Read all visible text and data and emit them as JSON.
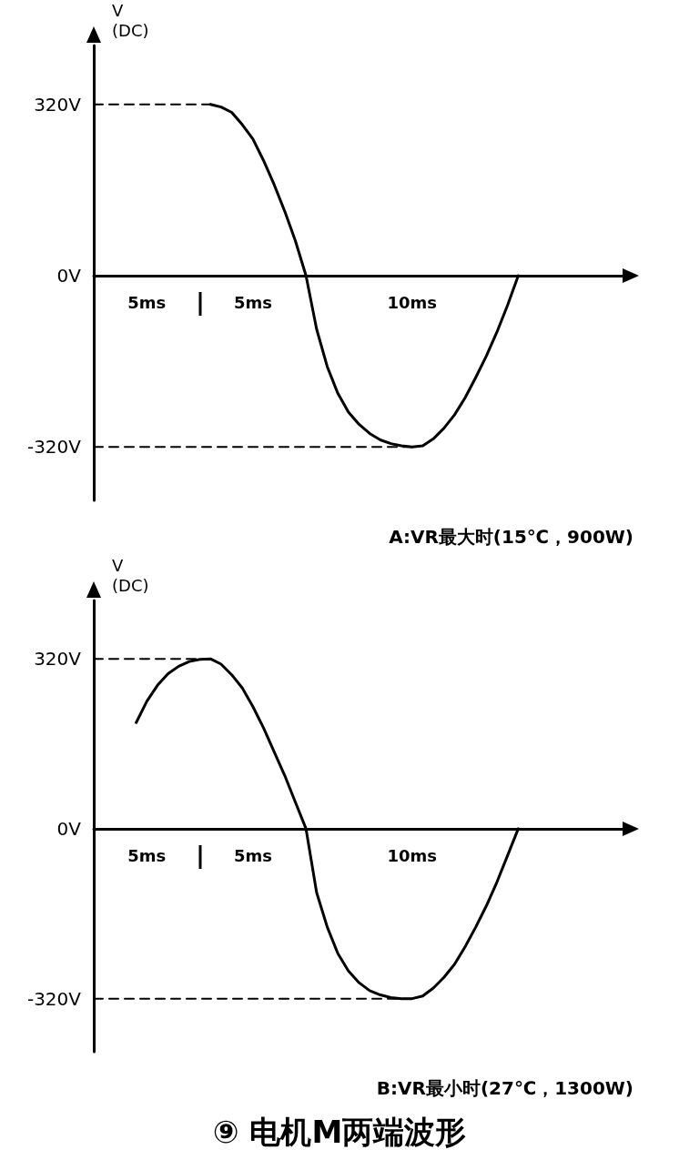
{
  "chart_data": [
    {
      "type": "line",
      "ylabel": "V\n(DC)",
      "categories": [
        null,
        null,
        null,
        null,
        null,
        null,
        null,
        null,
        null,
        null,
        null,
        null,
        null,
        null,
        null,
        null,
        null,
        null,
        null,
        null,
        null,
        null,
        null,
        null,
        null,
        null,
        null,
        null,
        null,
        null,
        null,
        null,
        null,
        null,
        null,
        null,
        null,
        null,
        null,
        null,
        null,
        null,
        null,
        null,
        null,
        null,
        null,
        null,
        null,
        null,
        null
      ],
      "ylim": [
        -420,
        430
      ],
      "yticks": [
        {
          "value": -320,
          "label": "-320V"
        },
        {
          "value": 0,
          "label": "0V"
        },
        {
          "value": 320,
          "label": "320V"
        }
      ],
      "grid": false,
      "marker": "none",
      "series": [
        {
          "color": "#000000",
          "line_style": "solid",
          "values": [
            null,
            null,
            null,
            null,
            null,
            null,
            null,
            null,
            null,
            null,
            null,
            320,
            315,
            305,
            282,
            255,
            215,
            170,
            120,
            65,
            0,
            -100,
            -170,
            -220,
            -255,
            -278,
            -295,
            -307,
            -314,
            -318,
            -320,
            -318,
            -305,
            -285,
            -260,
            -228,
            -190,
            -150,
            -105,
            -55,
            0,
            null,
            null,
            null,
            null,
            null,
            null,
            null,
            null,
            null,
            null
          ]
        },
        {
          "color": "#000000",
          "line_style": "dashed",
          "values": [
            320,
            320,
            320,
            320,
            320,
            320,
            320,
            320,
            320,
            320,
            320,
            320,
            null,
            null,
            null,
            null,
            null,
            null,
            null,
            null,
            null,
            null,
            null,
            null,
            null,
            null,
            null,
            null,
            null,
            null,
            null,
            null,
            null,
            null,
            null,
            null,
            null,
            null,
            null,
            null,
            null,
            null,
            null,
            null,
            null,
            null,
            null,
            null,
            null,
            null,
            null
          ]
        },
        {
          "color": "#000000",
          "line_style": "dashed",
          "values": [
            -320,
            -320,
            -320,
            -320,
            -320,
            -320,
            -320,
            -320,
            -320,
            -320,
            -320,
            -320,
            -320,
            -320,
            -320,
            -320,
            -320,
            -320,
            -320,
            -320,
            -320,
            -320,
            -320,
            -320,
            -320,
            -320,
            -320,
            -320,
            -320,
            -320,
            -320,
            null,
            null,
            null,
            null,
            null,
            null,
            null,
            null,
            null,
            null,
            null,
            null,
            null,
            null,
            null,
            null,
            null,
            null,
            null,
            null
          ]
        }
      ],
      "annotations": [
        "5ms",
        "5ms",
        "10ms",
        "A:VR最大时(15℃，900W)"
      ]
    },
    {
      "type": "line",
      "title": "⑨ 电机M两端波形",
      "ylabel": "V\n(DC)",
      "categories": [
        null,
        null,
        null,
        null,
        null,
        null,
        null,
        null,
        null,
        null,
        null,
        null,
        null,
        null,
        null,
        null,
        null,
        null,
        null,
        null,
        null,
        null,
        null,
        null,
        null,
        null,
        null,
        null,
        null,
        null,
        null,
        null,
        null,
        null,
        null,
        null,
        null,
        null,
        null,
        null,
        null,
        null,
        null,
        null,
        null,
        null,
        null,
        null,
        null,
        null,
        null
      ],
      "ylim": [
        -420,
        430
      ],
      "yticks": [
        {
          "value": -320,
          "label": "-320V"
        },
        {
          "value": 0,
          "label": "0V"
        },
        {
          "value": 320,
          "label": "320V"
        }
      ],
      "grid": false,
      "marker": "none",
      "series": [
        {
          "color": "#000000",
          "line_style": "solid",
          "values": [
            null,
            null,
            null,
            null,
            200,
            240,
            270,
            292,
            306,
            315,
            319,
            320,
            310,
            290,
            265,
            230,
            190,
            145,
            100,
            50,
            0,
            -120,
            -185,
            -235,
            -268,
            -290,
            -305,
            -313,
            -318,
            -320,
            -320,
            -315,
            -300,
            -280,
            -255,
            -222,
            -185,
            -145,
            -100,
            -50,
            0,
            null,
            null,
            null,
            null,
            null,
            null,
            null,
            null,
            null,
            null
          ]
        },
        {
          "color": "#000000",
          "line_style": "dashed",
          "values": [
            320,
            320,
            320,
            320,
            320,
            320,
            320,
            320,
            320,
            320,
            320,
            320,
            null,
            null,
            null,
            null,
            null,
            null,
            null,
            null,
            null,
            null,
            null,
            null,
            null,
            null,
            null,
            null,
            null,
            null,
            null,
            null,
            null,
            null,
            null,
            null,
            null,
            null,
            null,
            null,
            null,
            null,
            null,
            null,
            null,
            null,
            null,
            null,
            null,
            null,
            null
          ]
        },
        {
          "color": "#000000",
          "line_style": "dashed",
          "values": [
            -320,
            -320,
            -320,
            -320,
            -320,
            -320,
            -320,
            -320,
            -320,
            -320,
            -320,
            -320,
            -320,
            -320,
            -320,
            -320,
            -320,
            -320,
            -320,
            -320,
            -320,
            -320,
            -320,
            -320,
            -320,
            -320,
            -320,
            -320,
            -320,
            -320,
            -320,
            null,
            null,
            null,
            null,
            null,
            null,
            null,
            null,
            null,
            null,
            null,
            null,
            null,
            null,
            null,
            null,
            null,
            null,
            null,
            null
          ]
        }
      ],
      "annotations": [
        "5ms",
        "5ms",
        "10ms",
        "B:VR最小时(27℃，1300W)"
      ]
    }
  ]
}
